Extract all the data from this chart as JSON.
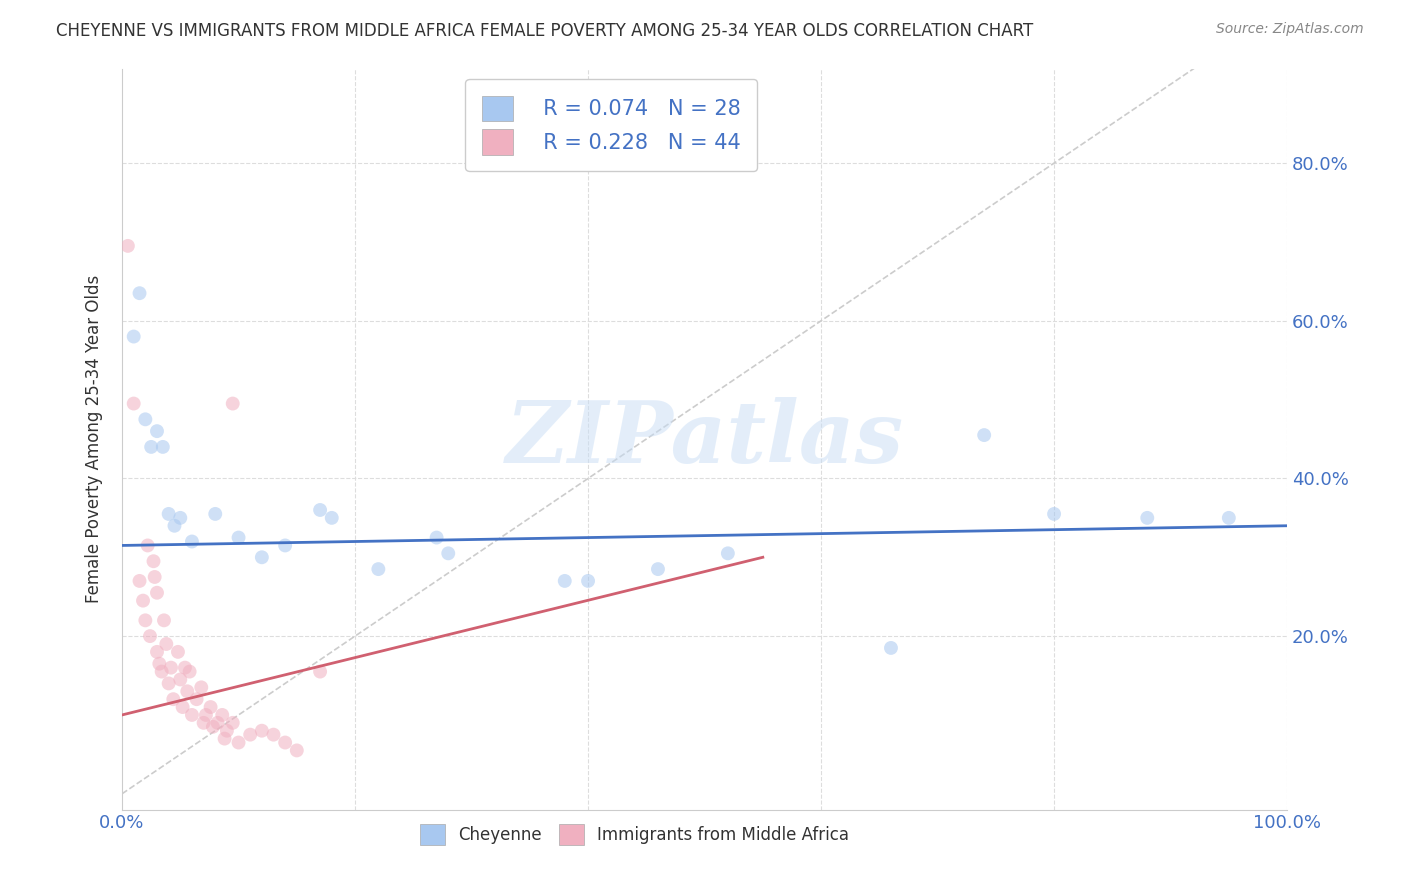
{
  "title": "CHEYENNE VS IMMIGRANTS FROM MIDDLE AFRICA FEMALE POVERTY AMONG 25-34 YEAR OLDS CORRELATION CHART",
  "source": "Source: ZipAtlas.com",
  "ylabel": "Female Poverty Among 25-34 Year Olds",
  "xlim": [
    0,
    1.0
  ],
  "ylim": [
    -0.02,
    0.92
  ],
  "xtick_positions": [
    0.0,
    0.2,
    0.4,
    0.6,
    0.8,
    1.0
  ],
  "xticklabels": [
    "0.0%",
    "",
    "",
    "",
    "",
    "100.0%"
  ],
  "ytick_positions": [
    0.0,
    0.2,
    0.4,
    0.6,
    0.8
  ],
  "yticklabels": [
    "",
    "20.0%",
    "40.0%",
    "60.0%",
    "80.0%"
  ],
  "legend_entries": [
    {
      "label": "Cheyenne",
      "color": "#a8c8f0",
      "R": "0.074",
      "N": "28"
    },
    {
      "label": "Immigrants from Middle Africa",
      "color": "#f0b0c0",
      "R": "0.228",
      "N": "44"
    }
  ],
  "cheyenne_scatter": [
    [
      0.01,
      0.58
    ],
    [
      0.015,
      0.635
    ],
    [
      0.02,
      0.475
    ],
    [
      0.025,
      0.44
    ],
    [
      0.03,
      0.46
    ],
    [
      0.035,
      0.44
    ],
    [
      0.04,
      0.355
    ],
    [
      0.045,
      0.34
    ],
    [
      0.05,
      0.35
    ],
    [
      0.06,
      0.32
    ],
    [
      0.08,
      0.355
    ],
    [
      0.1,
      0.325
    ],
    [
      0.12,
      0.3
    ],
    [
      0.14,
      0.315
    ],
    [
      0.17,
      0.36
    ],
    [
      0.18,
      0.35
    ],
    [
      0.22,
      0.285
    ],
    [
      0.27,
      0.325
    ],
    [
      0.28,
      0.305
    ],
    [
      0.38,
      0.27
    ],
    [
      0.4,
      0.27
    ],
    [
      0.46,
      0.285
    ],
    [
      0.52,
      0.305
    ],
    [
      0.66,
      0.185
    ],
    [
      0.74,
      0.455
    ],
    [
      0.8,
      0.355
    ],
    [
      0.88,
      0.35
    ],
    [
      0.95,
      0.35
    ]
  ],
  "immigrants_scatter": [
    [
      0.005,
      0.695
    ],
    [
      0.01,
      0.495
    ],
    [
      0.015,
      0.27
    ],
    [
      0.018,
      0.245
    ],
    [
      0.02,
      0.22
    ],
    [
      0.022,
      0.315
    ],
    [
      0.024,
      0.2
    ],
    [
      0.027,
      0.295
    ],
    [
      0.028,
      0.275
    ],
    [
      0.03,
      0.255
    ],
    [
      0.03,
      0.18
    ],
    [
      0.032,
      0.165
    ],
    [
      0.034,
      0.155
    ],
    [
      0.036,
      0.22
    ],
    [
      0.038,
      0.19
    ],
    [
      0.04,
      0.14
    ],
    [
      0.042,
      0.16
    ],
    [
      0.044,
      0.12
    ],
    [
      0.048,
      0.18
    ],
    [
      0.05,
      0.145
    ],
    [
      0.052,
      0.11
    ],
    [
      0.054,
      0.16
    ],
    [
      0.056,
      0.13
    ],
    [
      0.058,
      0.155
    ],
    [
      0.06,
      0.1
    ],
    [
      0.064,
      0.12
    ],
    [
      0.068,
      0.135
    ],
    [
      0.07,
      0.09
    ],
    [
      0.072,
      0.1
    ],
    [
      0.076,
      0.11
    ],
    [
      0.078,
      0.085
    ],
    [
      0.082,
      0.09
    ],
    [
      0.086,
      0.1
    ],
    [
      0.088,
      0.07
    ],
    [
      0.09,
      0.08
    ],
    [
      0.095,
      0.09
    ],
    [
      0.1,
      0.065
    ],
    [
      0.11,
      0.075
    ],
    [
      0.12,
      0.08
    ],
    [
      0.13,
      0.075
    ],
    [
      0.14,
      0.065
    ],
    [
      0.15,
      0.055
    ],
    [
      0.095,
      0.495
    ],
    [
      0.17,
      0.155
    ]
  ],
  "cheyenne_line": {
    "x": [
      0.0,
      1.0
    ],
    "y": [
      0.315,
      0.34
    ],
    "color": "#4472c4"
  },
  "immigrants_line": {
    "x": [
      0.0,
      0.55
    ],
    "y": [
      0.1,
      0.3
    ],
    "color": "#d06070"
  },
  "diagonal_line": {
    "x": [
      0.0,
      1.0
    ],
    "y": [
      0.0,
      1.0
    ],
    "color": "#cccccc",
    "style": "--"
  },
  "watermark_text": "ZIPatlas",
  "watermark_color": "#c8ddf5",
  "watermark_alpha": 0.5,
  "background_color": "#ffffff",
  "grid_color": "#dddddd",
  "title_color": "#333333",
  "axis_label_color": "#333333",
  "tick_color": "#4472c4",
  "scatter_alpha": 0.55,
  "scatter_size": 100
}
